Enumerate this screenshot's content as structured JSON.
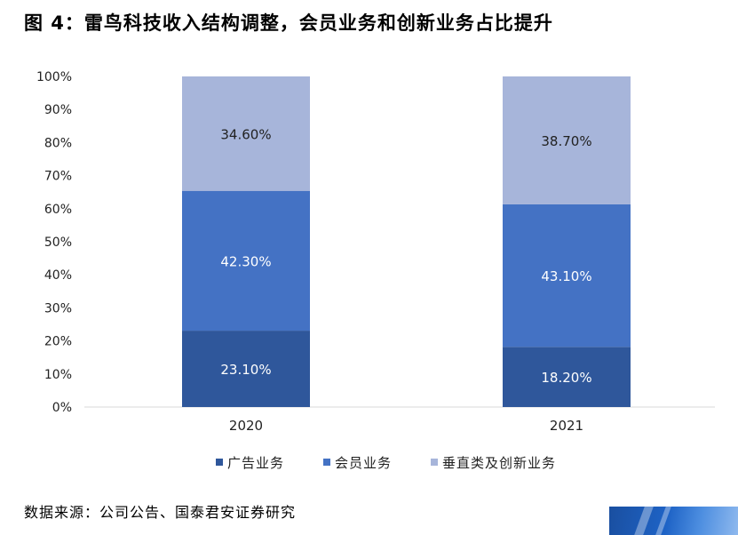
{
  "title": "图 4：雷鸟科技收入结构调整，会员业务和创新业务占比提升",
  "source": "数据来源：公司公告、国泰君安证券研究",
  "chart_data": {
    "type": "bar",
    "stacked": true,
    "categories": [
      "2020",
      "2021"
    ],
    "series": [
      {
        "name": "广告业务",
        "values": [
          23.1,
          18.2
        ],
        "labels": [
          "23.10%",
          "18.20%"
        ],
        "color": "#2f579b"
      },
      {
        "name": "会员业务",
        "values": [
          42.3,
          43.1
        ],
        "labels": [
          "42.30%",
          "43.10%"
        ],
        "color": "#4472c4"
      },
      {
        "name": "垂直类及创新业务",
        "values": [
          34.6,
          38.7
        ],
        "labels": [
          "34.60%",
          "38.70%"
        ],
        "color": "#a7b5da"
      }
    ],
    "yticks": [
      "0%",
      "10%",
      "20%",
      "30%",
      "40%",
      "50%",
      "60%",
      "70%",
      "80%",
      "90%",
      "100%"
    ],
    "ylim": [
      0,
      100
    ],
    "legend": "bottom",
    "grid": false
  }
}
